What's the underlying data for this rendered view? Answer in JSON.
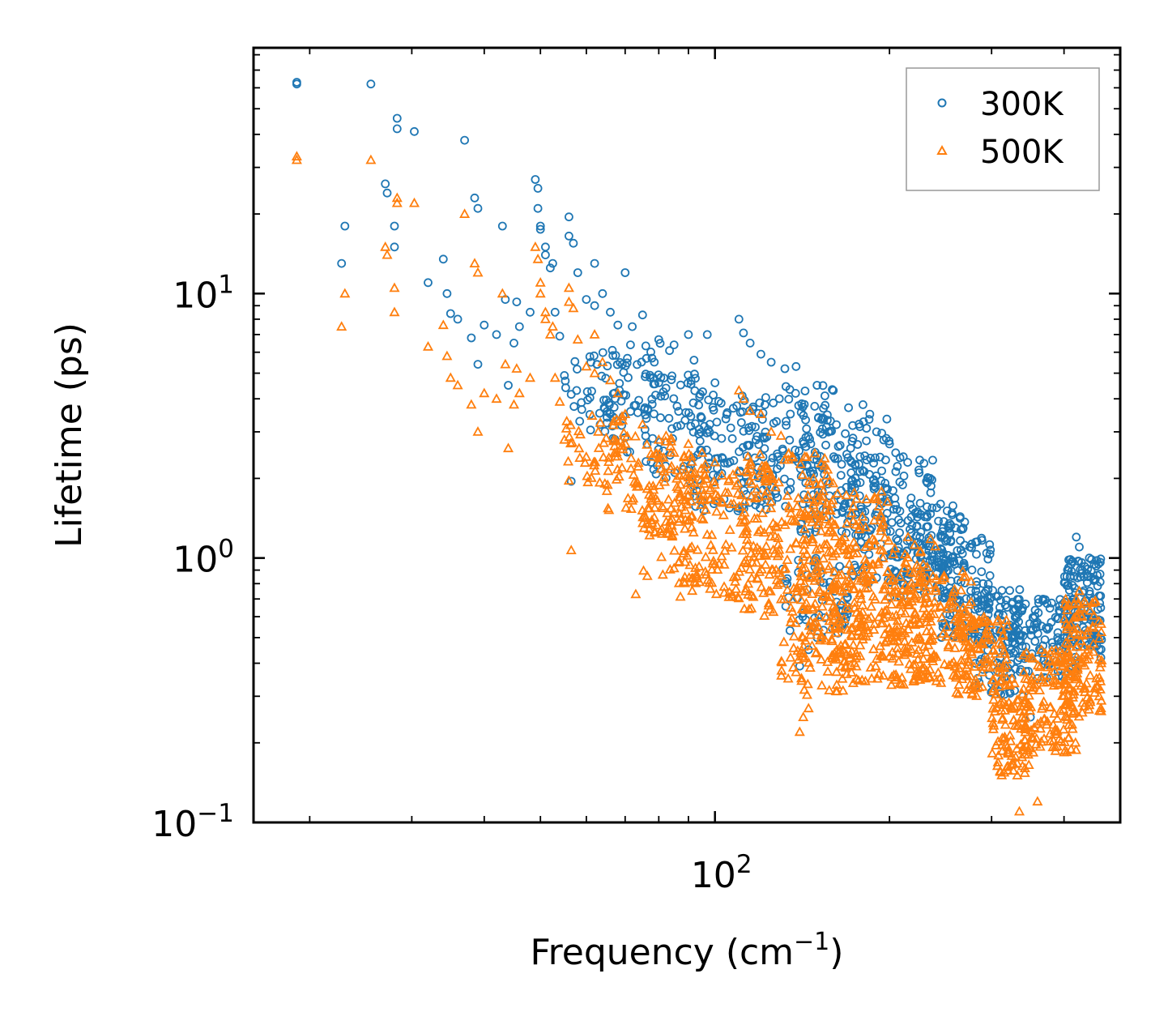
{
  "chart_data": {
    "type": "scatter",
    "title": "",
    "xlabel": "Frequency (cm",
    "xlabel_sup": "−1",
    "xlabel_close": ")",
    "ylabel": "Lifetime (ps)",
    "xscale": "log",
    "yscale": "log",
    "xlim": [
      16,
      500
    ],
    "ylim": [
      0.1,
      85
    ],
    "x_tick_labels": [
      {
        "value": 100,
        "base": "10",
        "exp": "2"
      }
    ],
    "y_tick_labels": [
      {
        "value": 0.1,
        "base": "10",
        "exp": "−1"
      },
      {
        "value": 1,
        "base": "10",
        "exp": "0"
      },
      {
        "value": 10,
        "base": "10",
        "exp": "1"
      }
    ],
    "grid": false,
    "legend": {
      "placement": "top-right"
    },
    "series": [
      {
        "name": "300K",
        "marker": "circle",
        "color": "#1f77b4",
        "points": [
          [
            19.0,
            63
          ],
          [
            19.0,
            62
          ],
          [
            25.5,
            62
          ],
          [
            28.3,
            46
          ],
          [
            28.3,
            42
          ],
          [
            30.3,
            41
          ],
          [
            37.0,
            38
          ],
          [
            27.0,
            26
          ],
          [
            27.2,
            24
          ],
          [
            23.0,
            18
          ],
          [
            22.7,
            13
          ],
          [
            28.0,
            18
          ],
          [
            28.0,
            15
          ],
          [
            32.0,
            11
          ],
          [
            34.0,
            13.5
          ],
          [
            34.5,
            10
          ],
          [
            35.0,
            8.4
          ],
          [
            36.0,
            8.0
          ],
          [
            38.5,
            23
          ],
          [
            39.0,
            21
          ],
          [
            39.0,
            5.4
          ],
          [
            38.0,
            6.8
          ],
          [
            40.0,
            7.6
          ],
          [
            42.0,
            7.0
          ],
          [
            43.0,
            18
          ],
          [
            43.5,
            9.5
          ],
          [
            44.0,
            4.5
          ],
          [
            45.0,
            6.5
          ],
          [
            45.5,
            9.3
          ],
          [
            46.0,
            7.5
          ],
          [
            48.0,
            8.5
          ],
          [
            49.0,
            27
          ],
          [
            49.5,
            25
          ],
          [
            49.5,
            21
          ],
          [
            50.0,
            18
          ],
          [
            50.0,
            17.5
          ],
          [
            51.0,
            15
          ],
          [
            51.0,
            14
          ],
          [
            52.0,
            12.5
          ],
          [
            52.5,
            13
          ],
          [
            53.0,
            8.5
          ],
          [
            54.0,
            6.9
          ],
          [
            55.0,
            4.9
          ],
          [
            56.0,
            19.5
          ],
          [
            56.0,
            16.5
          ],
          [
            57.0,
            15.5
          ],
          [
            58.0,
            12.0
          ],
          [
            60.0,
            9.5
          ],
          [
            62.0,
            13.0
          ],
          [
            64.0,
            10.0
          ],
          [
            62.0,
            9.0
          ],
          [
            66.0,
            8.5
          ],
          [
            68.0,
            7.6
          ],
          [
            70.0,
            12.0
          ],
          [
            72.0,
            7.5
          ],
          [
            75.0,
            8.3
          ],
          [
            80.0,
            6.7
          ],
          [
            85.0,
            6.4
          ],
          [
            90.0,
            7.0
          ],
          [
            92.0,
            5.6
          ],
          [
            97.0,
            7.0
          ],
          [
            100.0,
            4.6
          ],
          [
            110.0,
            8.0
          ],
          [
            112.0,
            7.1
          ],
          [
            115.0,
            6.5
          ],
          [
            120.0,
            5.9
          ],
          [
            125.0,
            5.5
          ],
          [
            132.0,
            5.2
          ],
          [
            138.0,
            5.3
          ],
          [
            150.0,
            4.5
          ],
          [
            160.0,
            4.3
          ],
          [
            170.0,
            3.7
          ],
          [
            180.0,
            3.8
          ],
          [
            185.0,
            3.5
          ],
          [
            190.0,
            3.0
          ],
          [
            200.0,
            2.7
          ],
          [
            205.0,
            2.5
          ],
          [
            215.0,
            2.3
          ],
          [
            225.0,
            2.1
          ],
          [
            235.0,
            2.0
          ],
          [
            56.5,
            1.95
          ],
          [
            140.0,
            0.39
          ],
          [
            145.0,
            0.45
          ],
          [
            150.0,
            0.5
          ],
          [
            245.0,
            1.6
          ],
          [
            260.0,
            1.3
          ],
          [
            275.0,
            1.1
          ],
          [
            290.0,
            0.8
          ],
          [
            310.0,
            0.65
          ],
          [
            325.0,
            0.5
          ],
          [
            340.0,
            0.3
          ],
          [
            350.0,
            0.25
          ],
          [
            360.0,
            0.35
          ],
          [
            375.0,
            0.42
          ],
          [
            390.0,
            0.5
          ],
          [
            405.0,
            0.6
          ],
          [
            415.0,
            0.7
          ],
          [
            420.0,
            1.2
          ],
          [
            425.0,
            1.1
          ],
          [
            430.0,
            0.9
          ],
          [
            440.0,
            0.85
          ],
          [
            450.0,
            0.7
          ],
          [
            455.0,
            0.5
          ],
          [
            460.0,
            0.45
          ],
          [
            463.0,
            0.42
          ]
        ],
        "clouds": [
          {
            "x": [
              55,
              70
            ],
            "y": [
              3.0,
              6.0
            ],
            "n": 45
          },
          {
            "x": [
              65,
              85
            ],
            "y": [
              2.5,
              6.5
            ],
            "n": 60
          },
          {
            "x": [
              75,
              100
            ],
            "y": [
              2.0,
              5.0
            ],
            "n": 70
          },
          {
            "x": [
              90,
              130
            ],
            "y": [
              1.5,
              4.0
            ],
            "n": 90
          },
          {
            "x": [
              110,
              160
            ],
            "y": [
              1.5,
              4.5
            ],
            "n": 110
          },
          {
            "x": [
              140,
              200
            ],
            "y": [
              1.2,
              3.5
            ],
            "n": 120
          },
          {
            "x": [
              170,
              240
            ],
            "y": [
              0.8,
              2.5
            ],
            "n": 130
          },
          {
            "x": [
              200,
              270
            ],
            "y": [
              0.7,
              1.6
            ],
            "n": 120
          },
          {
            "x": [
              240,
              300
            ],
            "y": [
              0.5,
              1.2
            ],
            "n": 110
          },
          {
            "x": [
              280,
              340
            ],
            "y": [
              0.3,
              0.8
            ],
            "n": 90
          },
          {
            "x": [
              320,
              420
            ],
            "y": [
              0.35,
              0.7
            ],
            "n": 130
          },
          {
            "x": [
              400,
              465
            ],
            "y": [
              0.45,
              1.0
            ],
            "n": 120
          },
          {
            "x": [
              130,
              170
            ],
            "y": [
              0.5,
              1.0
            ],
            "n": 60
          }
        ]
      },
      {
        "name": "500K",
        "marker": "triangle",
        "color": "#ff7f0e",
        "points": [
          [
            19.0,
            33
          ],
          [
            19.0,
            32
          ],
          [
            25.5,
            32
          ],
          [
            28.3,
            23
          ],
          [
            28.3,
            22
          ],
          [
            30.3,
            22
          ],
          [
            37.0,
            20
          ],
          [
            27.0,
            15
          ],
          [
            27.2,
            14
          ],
          [
            23.0,
            10
          ],
          [
            22.7,
            7.5
          ],
          [
            28.0,
            10.5
          ],
          [
            28.0,
            8.5
          ],
          [
            32.0,
            6.3
          ],
          [
            34.0,
            7.6
          ],
          [
            34.5,
            5.8
          ],
          [
            35.0,
            4.8
          ],
          [
            36.0,
            4.5
          ],
          [
            38.5,
            13
          ],
          [
            39.0,
            12
          ],
          [
            39.0,
            3.0
          ],
          [
            38.0,
            3.8
          ],
          [
            40.0,
            4.2
          ],
          [
            42.0,
            4.0
          ],
          [
            43.0,
            10
          ],
          [
            43.5,
            5.4
          ],
          [
            44.0,
            2.6
          ],
          [
            45.0,
            3.8
          ],
          [
            45.5,
            5.2
          ],
          [
            46.0,
            4.2
          ],
          [
            48.0,
            4.8
          ],
          [
            49.0,
            15
          ],
          [
            49.5,
            13.5
          ],
          [
            50.0,
            11
          ],
          [
            50.0,
            10
          ],
          [
            51.0,
            8.5
          ],
          [
            51.0,
            8.0
          ],
          [
            52.0,
            7.0
          ],
          [
            52.5,
            7.5
          ],
          [
            53.0,
            4.8
          ],
          [
            54.0,
            3.9
          ],
          [
            55.0,
            2.8
          ],
          [
            56.0,
            10.5
          ],
          [
            56.0,
            9.3
          ],
          [
            57.0,
            8.8
          ],
          [
            58.0,
            6.7
          ],
          [
            60.0,
            5.3
          ],
          [
            62.0,
            7.0
          ],
          [
            64.0,
            5.5
          ],
          [
            62.0,
            5.0
          ],
          [
            66.0,
            4.7
          ],
          [
            68.0,
            4.2
          ],
          [
            56.5,
            1.07
          ],
          [
            70.0,
            3.5
          ],
          [
            75.0,
            3.2
          ],
          [
            80.0,
            2.8
          ],
          [
            85.0,
            2.5
          ],
          [
            90.0,
            2.7
          ],
          [
            95.0,
            2.5
          ],
          [
            100.0,
            2.3
          ],
          [
            110.0,
            4.3
          ],
          [
            112.0,
            4.0
          ],
          [
            115.0,
            3.6
          ],
          [
            120.0,
            3.5
          ],
          [
            125.0,
            3.0
          ],
          [
            130.0,
            2.9
          ],
          [
            73.0,
            0.73
          ],
          [
            140.0,
            0.22
          ],
          [
            142.0,
            0.25
          ],
          [
            145.0,
            0.27
          ],
          [
            138.0,
            0.37
          ],
          [
            135.0,
            0.42
          ],
          [
            335.0,
            0.11
          ],
          [
            360.0,
            0.12
          ],
          [
            420.0,
            0.7
          ],
          [
            425.0,
            0.75
          ],
          [
            430.0,
            0.6
          ],
          [
            440.0,
            0.45
          ],
          [
            455.0,
            0.35
          ],
          [
            460.0,
            0.3
          ]
        ],
        "clouds": [
          {
            "x": [
              55,
              70
            ],
            "y": [
              1.8,
              3.5
            ],
            "n": 45
          },
          {
            "x": [
              65,
              85
            ],
            "y": [
              1.2,
              3.0
            ],
            "n": 70
          },
          {
            "x": [
              75,
              100
            ],
            "y": [
              0.8,
              2.5
            ],
            "n": 90
          },
          {
            "x": [
              85,
              130
            ],
            "y": [
              0.7,
              2.2
            ],
            "n": 150
          },
          {
            "x": [
              110,
              160
            ],
            "y": [
              0.6,
              2.5
            ],
            "n": 170
          },
          {
            "x": [
              140,
              200
            ],
            "y": [
              0.4,
              1.8
            ],
            "n": 200
          },
          {
            "x": [
              160,
              240
            ],
            "y": [
              0.33,
              1.2
            ],
            "n": 200
          },
          {
            "x": [
              200,
              280
            ],
            "y": [
              0.33,
              0.9
            ],
            "n": 160
          },
          {
            "x": [
              260,
              320
            ],
            "y": [
              0.3,
              0.6
            ],
            "n": 110
          },
          {
            "x": [
              300,
              350
            ],
            "y": [
              0.15,
              0.35
            ],
            "n": 100
          },
          {
            "x": [
              340,
              420
            ],
            "y": [
              0.18,
              0.45
            ],
            "n": 140
          },
          {
            "x": [
              400,
              465
            ],
            "y": [
              0.25,
              0.7
            ],
            "n": 120
          },
          {
            "x": [
              130,
              170
            ],
            "y": [
              0.3,
              0.6
            ],
            "n": 50
          }
        ]
      }
    ]
  }
}
